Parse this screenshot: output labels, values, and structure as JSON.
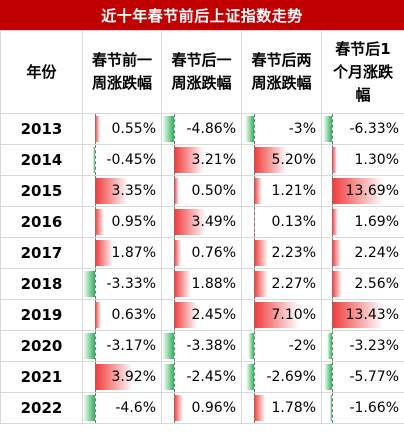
{
  "title": "近十年春节前后上证指数走势",
  "headers": {
    "year": "年份",
    "col1": [
      "春节前一",
      "周涨跌幅"
    ],
    "col2": [
      "春节后一",
      "周涨跌幅"
    ],
    "col3": [
      "春节后两",
      "周涨跌幅"
    ],
    "col4": [
      "春节后1",
      "个月涨跌",
      "幅"
    ]
  },
  "colors": {
    "title_bg": "#c00000",
    "positive_bar": "#f03a3a",
    "negative_bar": "#2fb05a"
  },
  "chart_data": {
    "type": "table",
    "columns": [
      "年份",
      "春节前一周涨跌幅",
      "春节后一周涨跌幅",
      "春节后两周涨跌幅",
      "春节后1个月涨跌幅"
    ],
    "scale_max": [
      4.6,
      4.86,
      7.1,
      13.69
    ],
    "rows": [
      {
        "year": "2013",
        "values": [
          0.55,
          -4.86,
          -3,
          -6.33
        ],
        "labels": [
          "0.55%",
          "-4.86%",
          "-3%",
          "-6.33%"
        ]
      },
      {
        "year": "2014",
        "values": [
          -0.45,
          3.21,
          5.2,
          1.3
        ],
        "labels": [
          "-0.45%",
          "3.21%",
          "5.20%",
          "1.30%"
        ]
      },
      {
        "year": "2015",
        "values": [
          3.35,
          0.5,
          1.21,
          13.69
        ],
        "labels": [
          "3.35%",
          "0.50%",
          "1.21%",
          "13.69%"
        ]
      },
      {
        "year": "2016",
        "values": [
          0.95,
          3.49,
          0.13,
          1.69
        ],
        "labels": [
          "0.95%",
          "3.49%",
          "0.13%",
          "1.69%"
        ]
      },
      {
        "year": "2017",
        "values": [
          1.87,
          0.76,
          2.23,
          2.24
        ],
        "labels": [
          "1.87%",
          "0.76%",
          "2.23%",
          "2.24%"
        ]
      },
      {
        "year": "2018",
        "values": [
          -3.33,
          1.88,
          2.27,
          2.56
        ],
        "labels": [
          "-3.33%",
          "1.88%",
          "2.27%",
          "2.56%"
        ]
      },
      {
        "year": "2019",
        "values": [
          0.63,
          2.45,
          7.1,
          13.43
        ],
        "labels": [
          "0.63%",
          "2.45%",
          "7.10%",
          "13.43%"
        ]
      },
      {
        "year": "2020",
        "values": [
          -3.17,
          -3.38,
          -2,
          -3.23
        ],
        "labels": [
          "-3.17%",
          "-3.38%",
          "-2%",
          "-3.23%"
        ]
      },
      {
        "year": "2021",
        "values": [
          3.92,
          -2.45,
          -2.69,
          -5.77
        ],
        "labels": [
          "3.92%",
          "-2.45%",
          "-2.69%",
          "-5.77%"
        ]
      },
      {
        "year": "2022",
        "values": [
          -4.6,
          0.96,
          1.78,
          -1.66
        ],
        "labels": [
          "-4.6%",
          "0.96%",
          "1.78%",
          "-1.66%"
        ]
      }
    ]
  }
}
